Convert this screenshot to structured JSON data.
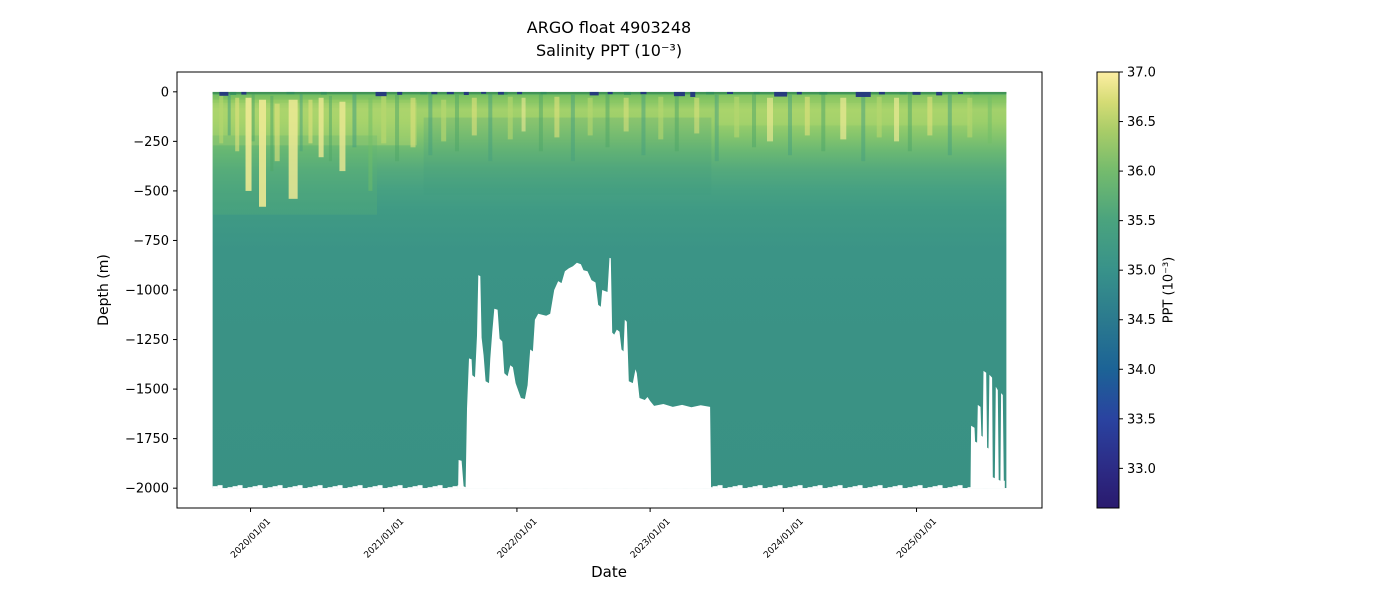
{
  "title": {
    "line1": "ARGO float 4903248",
    "line2": "Salinity PPT (10⁻³)"
  },
  "chart_data": {
    "type": "heatmap",
    "title": "ARGO float 4903248",
    "subtitle": "Salinity PPT (10⁻³)",
    "xlabel": "Date",
    "ylabel": "Depth (m)",
    "x_ticks": [
      "2020/01/01",
      "2021/01/01",
      "2022/01/01",
      "2023/01/01",
      "2024/01/01",
      "2025/01/01"
    ],
    "x_tick_years": [
      2020,
      2021,
      2022,
      2023,
      2024,
      2025
    ],
    "x_range_years": [
      2019.448,
      2025.942
    ],
    "y_ticks": [
      0,
      -250,
      -500,
      -750,
      -1000,
      -1250,
      -1500,
      -1750,
      -2000
    ],
    "y_tick_labels": [
      "0",
      "−250",
      "−500",
      "−750",
      "−1000",
      "−1250",
      "−1500",
      "−1750",
      "−2000"
    ],
    "y_range": [
      100,
      -2100
    ],
    "grid": false,
    "colorbar": {
      "label": "PPT (10⁻³)",
      "tick_labels": [
        "33.0",
        "33.5",
        "34.0",
        "34.5",
        "35.0",
        "35.5",
        "36.0",
        "36.5",
        "37.0"
      ],
      "tick_values": [
        33.0,
        33.5,
        34.0,
        34.5,
        35.0,
        35.5,
        36.0,
        36.5,
        37.0
      ],
      "vmin": 32.6,
      "vmax": 37.0,
      "colormap": "haline",
      "stops": [
        [
          32.6,
          "#2a1a6e"
        ],
        [
          33.0,
          "#2c2b85"
        ],
        [
          33.5,
          "#2a43a0"
        ],
        [
          34.0,
          "#1c6396"
        ],
        [
          34.5,
          "#2b7a8e"
        ],
        [
          35.0,
          "#38928a"
        ],
        [
          35.5,
          "#4aa37e"
        ],
        [
          36.0,
          "#74bb6d"
        ],
        [
          36.4,
          "#a8cc68"
        ],
        [
          36.7,
          "#d5dc75"
        ],
        [
          37.0,
          "#fdeea3"
        ]
      ]
    },
    "data_extent": {
      "start_year": 2019.715,
      "end_year": 2025.675,
      "depth_top": 0,
      "depth_bottom": -2000
    },
    "depth_gradient": [
      [
        0.0,
        "#3f9152"
      ],
      [
        0.006,
        "#5fb464"
      ],
      [
        0.022,
        "#84c566"
      ],
      [
        0.045,
        "#a3d16b"
      ],
      [
        0.075,
        "#9ccf6a"
      ],
      [
        0.11,
        "#85c56c"
      ],
      [
        0.15,
        "#6ab873"
      ],
      [
        0.195,
        "#55aa7c"
      ],
      [
        0.245,
        "#47a182"
      ],
      [
        0.3,
        "#3f9a84"
      ],
      [
        0.4,
        "#3b9486"
      ],
      [
        0.65,
        "#3a9285"
      ],
      [
        1.0,
        "#399183"
      ]
    ],
    "bands": [
      {
        "x0": 2019.715,
        "x1": 2021.25,
        "top": -40,
        "bot": -270,
        "color": "#b9d96d",
        "opacity": 0.4
      },
      {
        "x0": 2019.715,
        "x1": 2020.95,
        "top": -220,
        "bot": -620,
        "color": "#5fb273",
        "opacity": 0.28
      },
      {
        "x0": 2021.3,
        "x1": 2023.46,
        "top": -130,
        "bot": -520,
        "color": "#3f9a7e",
        "opacity": 0.22
      },
      {
        "x0": 2023.5,
        "x1": 2025.4,
        "top": -15,
        "bot": -170,
        "color": "#b9d96d",
        "opacity": 0.3
      },
      {
        "x0": 2019.715,
        "x1": 2025.675,
        "top": -15,
        "bot": -55,
        "color": "#8cc75f",
        "opacity": 0.45
      }
    ],
    "streak_colors": {
      "py": "#ece994",
      "yl": "#dfe17c",
      "yg": "#b8d76e",
      "gr": "#6fbe68",
      "dg": "#4da567",
      "tl": "#45a07e",
      "dt": "#2f8f73"
    },
    "streaks": [
      [
        2019.78,
        4,
        -20,
        -260,
        "yg",
        0.6
      ],
      [
        2019.84,
        3,
        -10,
        -220,
        "tl",
        0.55
      ],
      [
        2019.9,
        4,
        -30,
        -300,
        "yl",
        0.6
      ],
      [
        2019.985,
        6,
        -30,
        -500,
        "py",
        0.9
      ],
      [
        2020.02,
        3,
        -10,
        -250,
        "dg",
        0.5
      ],
      [
        2020.09,
        7,
        -40,
        -580,
        "py",
        0.9
      ],
      [
        2020.16,
        3,
        -20,
        -400,
        "dg",
        0.5
      ],
      [
        2020.2,
        5,
        -60,
        -350,
        "yl",
        0.6
      ],
      [
        2020.32,
        9,
        -40,
        -540,
        "py",
        0.85
      ],
      [
        2020.38,
        3,
        -10,
        -300,
        "tl",
        0.5
      ],
      [
        2020.45,
        4,
        -40,
        -260,
        "yl",
        0.6
      ],
      [
        2020.53,
        5,
        -30,
        -330,
        "py",
        0.8
      ],
      [
        2020.6,
        3,
        -20,
        -350,
        "dg",
        0.5
      ],
      [
        2020.69,
        6,
        -50,
        -400,
        "py",
        0.8
      ],
      [
        2020.78,
        4,
        -10,
        -280,
        "tl",
        0.55
      ],
      [
        2020.9,
        4,
        -30,
        -500,
        "gr",
        0.5
      ],
      [
        2021.0,
        5,
        -20,
        -260,
        "yg",
        0.7
      ],
      [
        2021.1,
        4,
        -15,
        -350,
        "dg",
        0.5
      ],
      [
        2021.22,
        5,
        -30,
        -280,
        "yl",
        0.6
      ],
      [
        2021.35,
        4,
        -10,
        -320,
        "tl",
        0.5
      ],
      [
        2021.45,
        5,
        -40,
        -250,
        "yg",
        0.65
      ],
      [
        2021.55,
        4,
        -15,
        -300,
        "dg",
        0.5
      ],
      [
        2021.68,
        5,
        -30,
        -220,
        "yl",
        0.6
      ],
      [
        2021.8,
        4,
        -10,
        -350,
        "tl",
        0.5
      ],
      [
        2021.95,
        5,
        -25,
        -240,
        "yg",
        0.6
      ],
      [
        2022.05,
        4,
        -30,
        -200,
        "py",
        0.6
      ],
      [
        2022.18,
        4,
        -10,
        -300,
        "dg",
        0.5
      ],
      [
        2022.3,
        5,
        -25,
        -230,
        "yl",
        0.6
      ],
      [
        2022.42,
        4,
        -15,
        -350,
        "tl",
        0.5
      ],
      [
        2022.55,
        5,
        -30,
        -220,
        "yg",
        0.6
      ],
      [
        2022.68,
        4,
        -10,
        -280,
        "dg",
        0.5
      ],
      [
        2022.82,
        5,
        -30,
        -200,
        "yl",
        0.55
      ],
      [
        2022.95,
        4,
        -15,
        -320,
        "tl",
        0.5
      ],
      [
        2023.08,
        5,
        -25,
        -240,
        "yg",
        0.6
      ],
      [
        2023.2,
        4,
        -10,
        -300,
        "dg",
        0.5
      ],
      [
        2023.35,
        5,
        -30,
        -210,
        "yl",
        0.55
      ],
      [
        2023.5,
        4,
        -15,
        -350,
        "tl",
        0.5
      ],
      [
        2023.65,
        5,
        -25,
        -230,
        "yg",
        0.6
      ],
      [
        2023.78,
        4,
        -10,
        -280,
        "dg",
        0.5
      ],
      [
        2023.9,
        6,
        -30,
        -250,
        "py",
        0.65
      ],
      [
        2024.05,
        4,
        -15,
        -320,
        "tl",
        0.5
      ],
      [
        2024.18,
        5,
        -25,
        -220,
        "yl",
        0.6
      ],
      [
        2024.3,
        4,
        -10,
        -300,
        "dg",
        0.5
      ],
      [
        2024.45,
        6,
        -30,
        -240,
        "py",
        0.7
      ],
      [
        2024.6,
        4,
        -15,
        -350,
        "tl",
        0.5
      ],
      [
        2024.72,
        5,
        -25,
        -230,
        "yg",
        0.6
      ],
      [
        2024.85,
        5,
        -30,
        -250,
        "py",
        0.7
      ],
      [
        2024.95,
        4,
        -10,
        -300,
        "dg",
        0.5
      ],
      [
        2025.1,
        5,
        -25,
        -220,
        "yl",
        0.6
      ],
      [
        2025.25,
        4,
        -15,
        -320,
        "tl",
        0.5
      ],
      [
        2025.4,
        5,
        -30,
        -230,
        "yg",
        0.6
      ],
      [
        2025.55,
        4,
        -20,
        -260,
        "gr",
        0.5
      ]
    ],
    "surface_strip": {
      "top": 0,
      "bot": -12,
      "color": "#3f9055",
      "opacity": 0.8
    },
    "surface_patches_navy": {
      "color": "#24357f",
      "items": [
        [
          2019.8,
          9,
          -20
        ],
        [
          2019.95,
          5,
          -14
        ],
        [
          2020.98,
          11,
          -22
        ],
        [
          2021.12,
          5,
          -15
        ],
        [
          2021.38,
          6,
          -12
        ],
        [
          2021.5,
          7,
          -12
        ],
        [
          2021.62,
          5,
          -16
        ],
        [
          2021.75,
          5,
          -10
        ],
        [
          2021.88,
          6,
          -14
        ],
        [
          2022.02,
          5,
          -12
        ],
        [
          2022.58,
          9,
          -18
        ],
        [
          2022.7,
          5,
          -12
        ],
        [
          2022.95,
          6,
          -12
        ],
        [
          2023.22,
          11,
          -22
        ],
        [
          2023.32,
          5,
          -26
        ],
        [
          2023.6,
          6,
          -11
        ],
        [
          2023.98,
          13,
          -24
        ],
        [
          2024.12,
          5,
          -13
        ],
        [
          2024.6,
          15,
          -26
        ],
        [
          2024.74,
          6,
          -13
        ],
        [
          2025.0,
          8,
          -15
        ],
        [
          2025.17,
          6,
          -18
        ],
        [
          2025.33,
          5,
          -11
        ]
      ]
    },
    "surface_patches_dark_green": {
      "color": "#2f8a60",
      "items": [
        [
          2019.87,
          6,
          -16
        ],
        [
          2020.3,
          8,
          -12
        ],
        [
          2020.55,
          6,
          -14
        ],
        [
          2021.3,
          7,
          -13
        ],
        [
          2021.9,
          8,
          -14
        ],
        [
          2022.2,
          6,
          -12
        ],
        [
          2022.83,
          7,
          -15
        ],
        [
          2023.45,
          8,
          -13
        ],
        [
          2023.8,
          6,
          -12
        ],
        [
          2024.3,
          8,
          -14
        ],
        [
          2024.9,
          7,
          -13
        ],
        [
          2025.45,
          6,
          -12
        ]
      ]
    },
    "missing_data_regions": [
      {
        "name": "mid-2021-to-mid-2023-shallow-profiles",
        "points": [
          [
            2021.558,
            -2005
          ],
          [
            2021.562,
            -1858
          ],
          [
            2021.585,
            -1862
          ],
          [
            2021.6,
            -1990
          ],
          [
            2021.615,
            -1995
          ],
          [
            2021.625,
            -1600
          ],
          [
            2021.64,
            -1345
          ],
          [
            2021.66,
            -1350
          ],
          [
            2021.665,
            -1430
          ],
          [
            2021.685,
            -1440
          ],
          [
            2021.7,
            -1230
          ],
          [
            2021.71,
            -925
          ],
          [
            2021.725,
            -930
          ],
          [
            2021.735,
            -1240
          ],
          [
            2021.75,
            -1330
          ],
          [
            2021.765,
            -1460
          ],
          [
            2021.79,
            -1470
          ],
          [
            2021.8,
            -1345
          ],
          [
            2021.815,
            -1210
          ],
          [
            2021.83,
            -1095
          ],
          [
            2021.855,
            -1100
          ],
          [
            2021.87,
            -1245
          ],
          [
            2021.89,
            -1260
          ],
          [
            2021.905,
            -1420
          ],
          [
            2021.93,
            -1435
          ],
          [
            2021.95,
            -1380
          ],
          [
            2021.97,
            -1390
          ],
          [
            2021.99,
            -1470
          ],
          [
            2022.03,
            -1545
          ],
          [
            2022.06,
            -1550
          ],
          [
            2022.08,
            -1480
          ],
          [
            2022.1,
            -1300
          ],
          [
            2022.12,
            -1310
          ],
          [
            2022.135,
            -1150
          ],
          [
            2022.16,
            -1120
          ],
          [
            2022.19,
            -1125
          ],
          [
            2022.22,
            -1130
          ],
          [
            2022.25,
            -1120
          ],
          [
            2022.28,
            -1000
          ],
          [
            2022.31,
            -955
          ],
          [
            2022.335,
            -965
          ],
          [
            2022.36,
            -905
          ],
          [
            2022.39,
            -890
          ],
          [
            2022.42,
            -880
          ],
          [
            2022.45,
            -862
          ],
          [
            2022.48,
            -870
          ],
          [
            2022.5,
            -900
          ],
          [
            2022.53,
            -905
          ],
          [
            2022.56,
            -950
          ],
          [
            2022.59,
            -962
          ],
          [
            2022.61,
            -1075
          ],
          [
            2022.63,
            -1085
          ],
          [
            2022.64,
            -1000
          ],
          [
            2022.68,
            -1010
          ],
          [
            2022.695,
            -838
          ],
          [
            2022.705,
            -840
          ],
          [
            2022.715,
            -1215
          ],
          [
            2022.73,
            -1225
          ],
          [
            2022.75,
            -1200
          ],
          [
            2022.77,
            -1210
          ],
          [
            2022.785,
            -1300
          ],
          [
            2022.8,
            -1310
          ],
          [
            2022.81,
            -1150
          ],
          [
            2022.825,
            -1160
          ],
          [
            2022.84,
            -1460
          ],
          [
            2022.87,
            -1470
          ],
          [
            2022.89,
            -1400
          ],
          [
            2022.9,
            -1420
          ],
          [
            2022.92,
            -1545
          ],
          [
            2022.96,
            -1555
          ],
          [
            2022.98,
            -1540
          ],
          [
            2023.0,
            -1560
          ],
          [
            2023.03,
            -1585
          ],
          [
            2023.1,
            -1575
          ],
          [
            2023.17,
            -1590
          ],
          [
            2023.24,
            -1580
          ],
          [
            2023.31,
            -1592
          ],
          [
            2023.38,
            -1582
          ],
          [
            2023.45,
            -1590
          ],
          [
            2023.458,
            -2005
          ]
        ]
      },
      {
        "name": "mid-2025-shallow-profiles",
        "points": [
          [
            2025.405,
            -2005
          ],
          [
            2025.41,
            -1685
          ],
          [
            2025.435,
            -1695
          ],
          [
            2025.44,
            -1765
          ],
          [
            2025.455,
            -1770
          ],
          [
            2025.46,
            -1580
          ],
          [
            2025.48,
            -1590
          ],
          [
            2025.487,
            -1735
          ],
          [
            2025.497,
            -1740
          ],
          [
            2025.503,
            -1408
          ],
          [
            2025.523,
            -1418
          ],
          [
            2025.53,
            -1795
          ],
          [
            2025.54,
            -1800
          ],
          [
            2025.547,
            -1428
          ],
          [
            2025.567,
            -1442
          ],
          [
            2025.573,
            -1945
          ],
          [
            2025.588,
            -1950
          ],
          [
            2025.595,
            -1488
          ],
          [
            2025.61,
            -1505
          ],
          [
            2025.617,
            -1958
          ],
          [
            2025.63,
            -1962
          ],
          [
            2025.635,
            -1520
          ],
          [
            2025.648,
            -1530
          ],
          [
            2025.655,
            -1962
          ],
          [
            2025.663,
            -1963
          ],
          [
            2025.663,
            -2005
          ]
        ]
      }
    ]
  }
}
